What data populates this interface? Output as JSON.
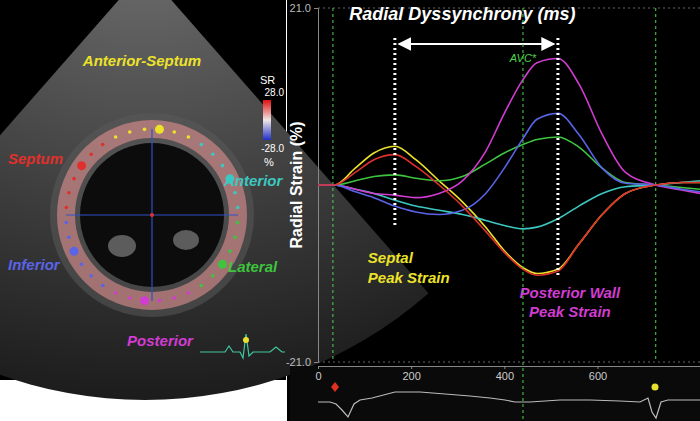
{
  "chart_data": {
    "type": "line",
    "ylabel": "Radial Strain (%)",
    "x": [
      0,
      35,
      80,
      120,
      165,
      210,
      260,
      310,
      360,
      400,
      440,
      470,
      515,
      560,
      610,
      660,
      725,
      780,
      820
    ],
    "xlim": [
      0,
      820
    ],
    "xticks": [
      0,
      200,
      400,
      600
    ],
    "ylim": [
      -21,
      21
    ],
    "yticks": [
      {
        "value": -21,
        "label": "-21.0"
      },
      {
        "value": 21,
        "label": "21.0"
      }
    ],
    "series": [
      {
        "name": "Anterior-Septum",
        "color": "#ece22a",
        "values": [
          0,
          0,
          2,
          3.8,
          4.6,
          3,
          0.5,
          -2,
          -5,
          -7.8,
          -9.8,
          -10.5,
          -10,
          -7,
          -3.5,
          -1,
          0,
          0.3,
          0.3
        ]
      },
      {
        "name": "Anterior",
        "color": "#3cc8c0",
        "values": [
          0,
          0,
          -0.5,
          -1,
          -1.8,
          -2.5,
          -3,
          -3.5,
          -4.2,
          -4.8,
          -5.2,
          -5,
          -4,
          -2.5,
          -1,
          -0.2,
          0,
          0.3,
          0.5
        ]
      },
      {
        "name": "Lateral",
        "color": "#3ec43e",
        "values": [
          0,
          0,
          0.5,
          1,
          1.2,
          0.8,
          0.5,
          1,
          2.5,
          3.8,
          4.8,
          5.4,
          5.7,
          4.5,
          2,
          0.3,
          0,
          -0.3,
          -0.5
        ]
      },
      {
        "name": "Posterior",
        "color": "#d23cd2",
        "values": [
          0,
          0,
          -0.5,
          -1,
          -1.2,
          -1.5,
          -1,
          0.5,
          4,
          8.5,
          12.5,
          14.5,
          15,
          12,
          6,
          1.5,
          0,
          -0.6,
          -1
        ]
      },
      {
        "name": "Inferior",
        "color": "#5a64e6",
        "values": [
          0,
          0,
          -0.8,
          -1.5,
          -2.5,
          -3.2,
          -3.5,
          -3,
          -1,
          2,
          5.5,
          7.8,
          8.5,
          6,
          2,
          0.2,
          0,
          -0.5,
          -0.8
        ]
      },
      {
        "name": "Septum",
        "color": "#e0302c",
        "values": [
          0,
          0,
          1.5,
          3,
          3.6,
          2.2,
          0,
          -2.5,
          -5.5,
          -8,
          -10,
          -10.7,
          -10.2,
          -7,
          -3.5,
          -1,
          0,
          0.3,
          0.3
        ]
      }
    ],
    "event_lines": [
      32,
      725
    ],
    "annotations": [
      {
        "text": "Radial Dyssynchrony (ms)",
        "x": [
          165,
          515
        ],
        "color": "#ffffff"
      },
      {
        "text": [
          "Septal",
          "Peak Strain"
        ],
        "x": 165,
        "color": "#ece22a"
      },
      {
        "text": [
          "Posterior Wall",
          "Peak Strain"
        ],
        "x": 515,
        "color": "#d23cd2"
      },
      {
        "text": "AVC*",
        "x": 440,
        "color": "#4cd64c"
      }
    ],
    "color_bar": {
      "title": "SR",
      "range": [
        -28,
        28
      ],
      "ticks": [
        {
          "value": 28,
          "label": "28.0"
        },
        {
          "value": -28,
          "label": "-28.0"
        }
      ],
      "unit": "%"
    }
  }
}
